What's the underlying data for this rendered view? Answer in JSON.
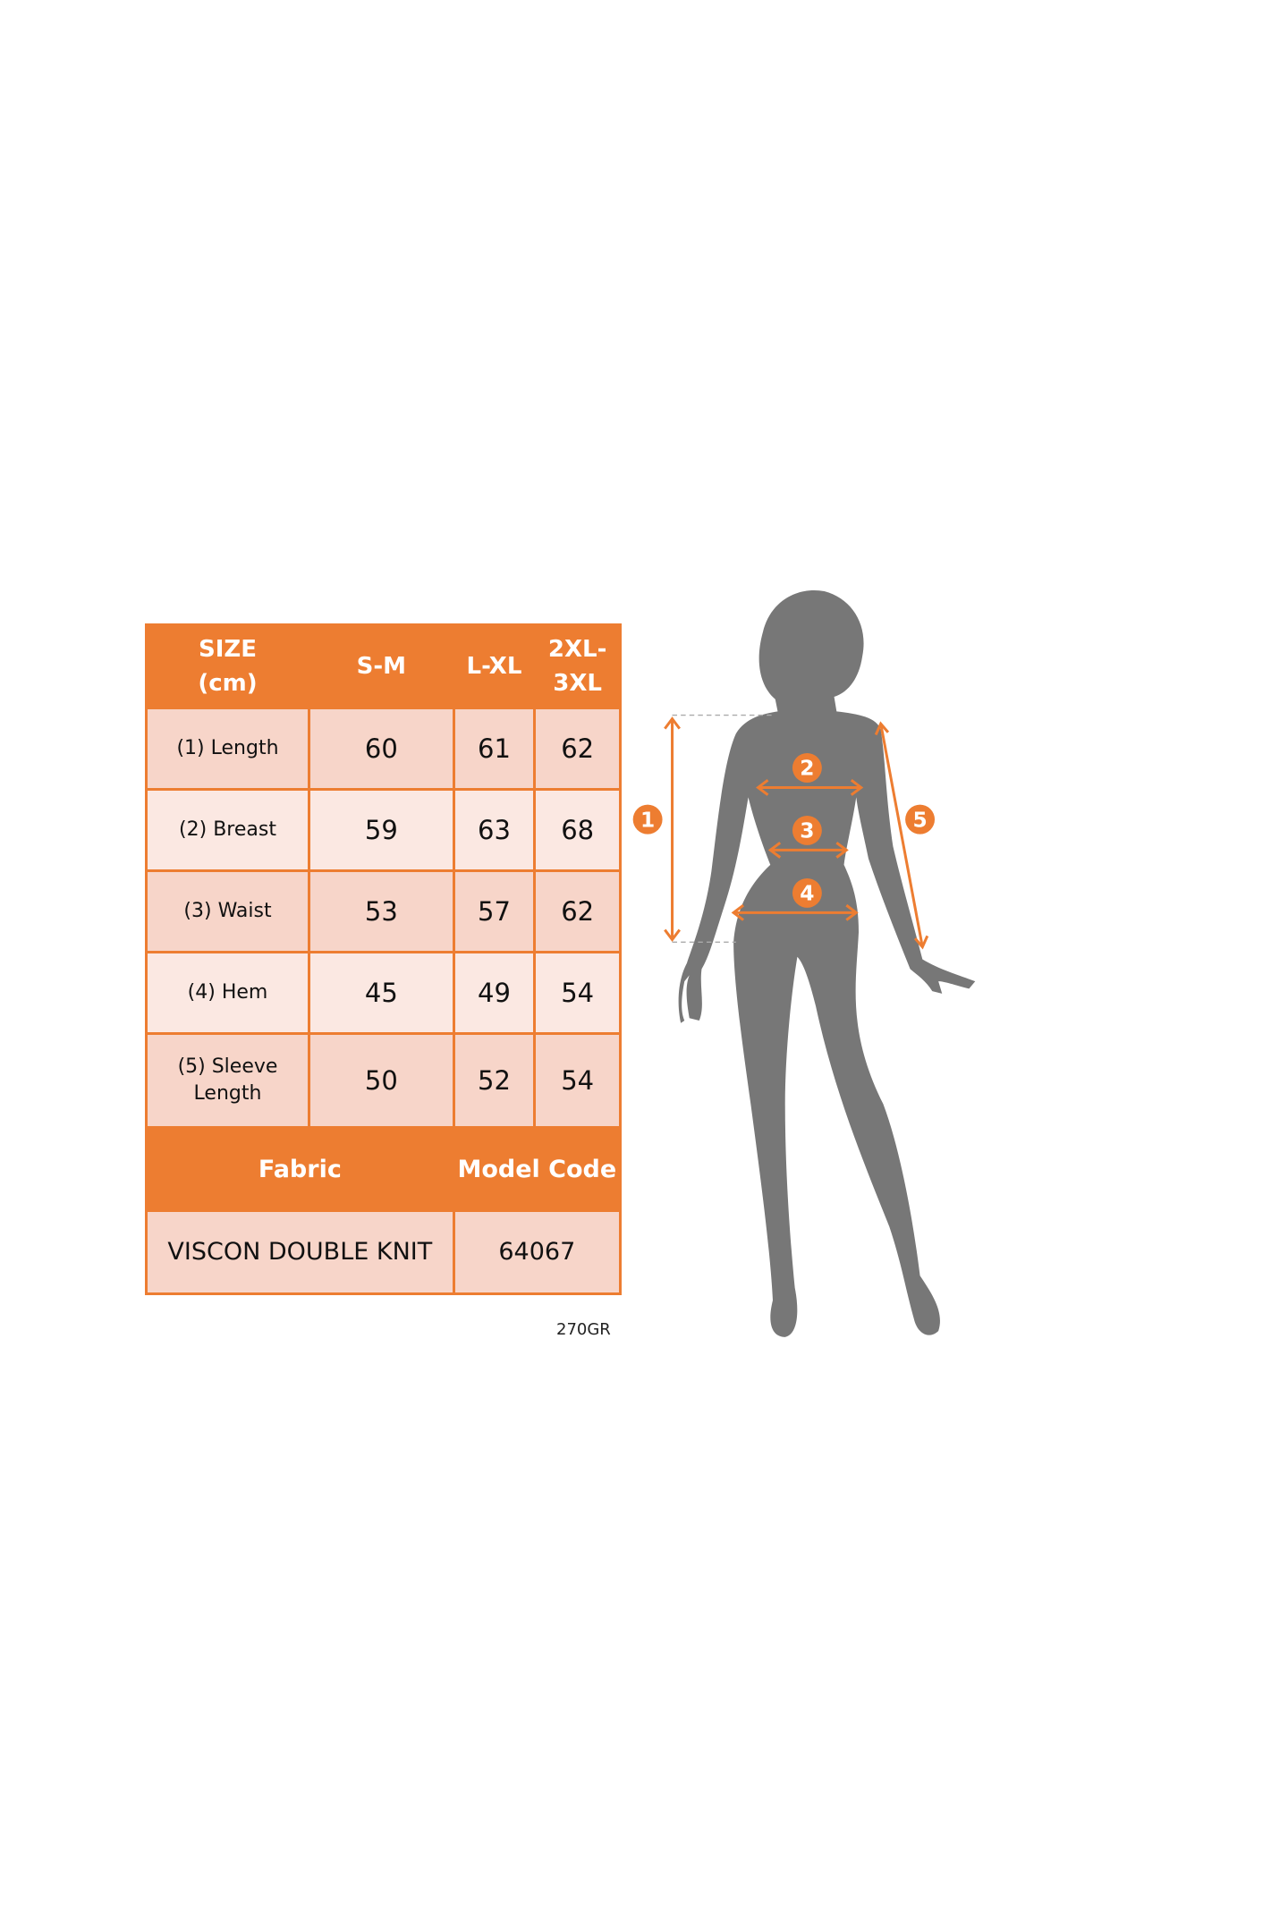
{
  "colors": {
    "accent": "#ED7D31",
    "row_dark": "#F7D5C9",
    "row_light": "#FBE8E2",
    "silhouette": "#777777"
  },
  "table": {
    "header": [
      "SIZE\n(cm)",
      "S-M",
      "L-XL",
      "2XL-\n3XL"
    ],
    "rows": [
      {
        "label": "(1) Length",
        "values": [
          "60",
          "61",
          "62"
        ]
      },
      {
        "label": "(2) Breast",
        "values": [
          "59",
          "63",
          "68"
        ]
      },
      {
        "label": "(3) Waist",
        "values": [
          "53",
          "57",
          "62"
        ]
      },
      {
        "label": "(4) Hem",
        "values": [
          "45",
          "49",
          "54"
        ]
      },
      {
        "label": "(5) Sleeve Length",
        "values": [
          "50",
          "52",
          "54"
        ]
      }
    ],
    "fabric_label": "Fabric",
    "model_code_label": "Model Code",
    "fabric_value": "VISCON DOUBLE KNIT",
    "model_code_value": "64067"
  },
  "weight": "270GR",
  "figure": {
    "markers": [
      "1",
      "2",
      "3",
      "4",
      "5"
    ]
  }
}
